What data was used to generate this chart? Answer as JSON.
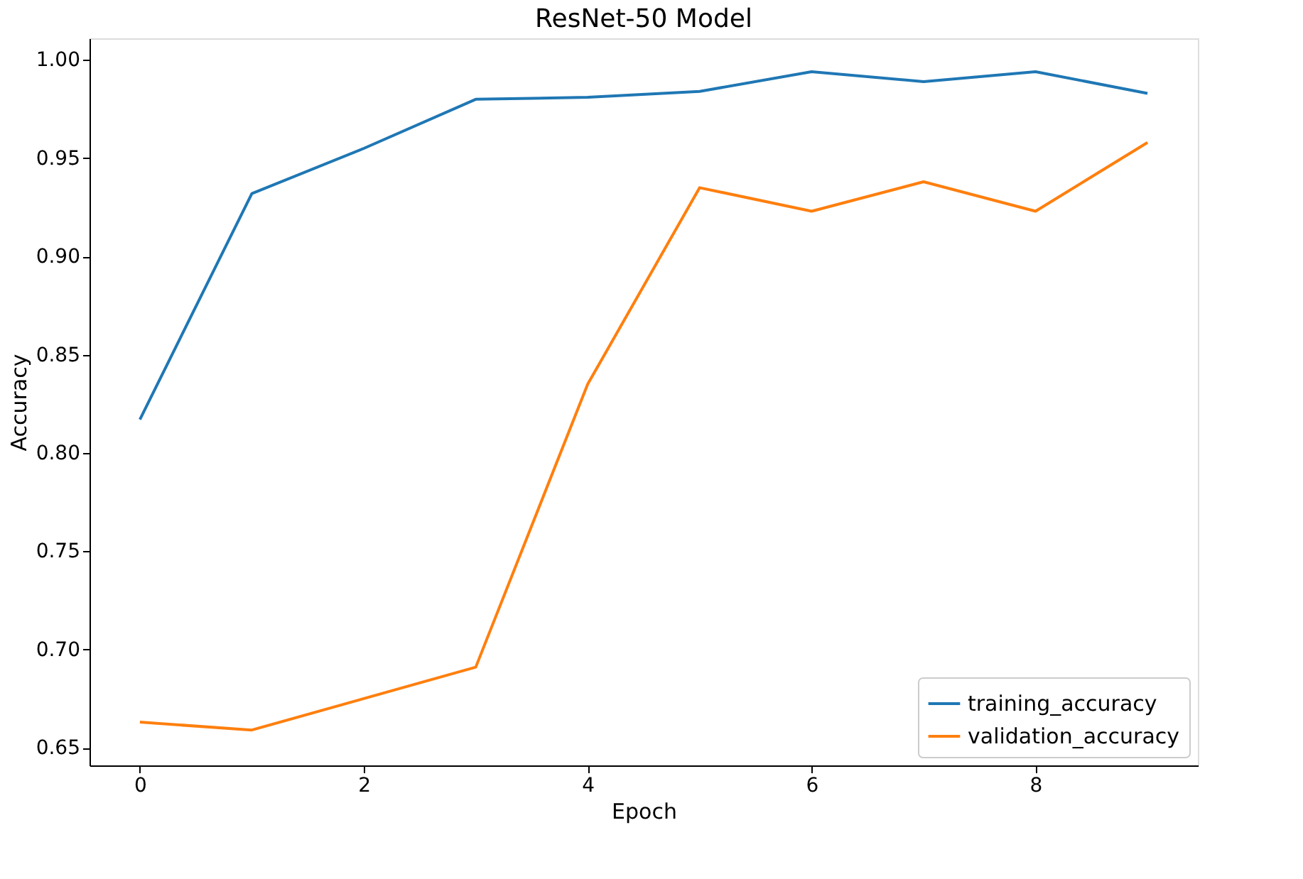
{
  "chart_data": {
    "type": "line",
    "title": "ResNet-50 Model",
    "xlabel": "Epoch",
    "ylabel": "Accuracy",
    "x": [
      0,
      1,
      2,
      3,
      4,
      5,
      6,
      7,
      8,
      9
    ],
    "series": [
      {
        "name": "training_accuracy",
        "color": "#1f77b4",
        "values": [
          0.817,
          0.932,
          0.955,
          0.98,
          0.981,
          0.984,
          0.994,
          0.989,
          0.994,
          0.983
        ]
      },
      {
        "name": "validation_accuracy",
        "color": "#ff7f0e",
        "values": [
          0.663,
          0.659,
          0.675,
          0.691,
          0.835,
          0.935,
          0.923,
          0.938,
          0.923,
          0.958
        ]
      }
    ],
    "xlim": [
      -0.45,
      9.45
    ],
    "xticks": [
      0,
      2,
      4,
      6,
      8
    ],
    "ylim": [
      0.641,
      1.011
    ],
    "yticks": [
      0.65,
      {
        "value": 0.7,
        "label": "0.70"
      },
      0.75,
      {
        "value": 0.8,
        "label": "0.80"
      },
      0.85,
      {
        "value": 0.9,
        "label": "0.90"
      },
      0.95,
      {
        "value": 1.0,
        "label": "1.00"
      }
    ],
    "grid": false,
    "legend": "bottom right",
    "marker": "none",
    "line_style": "solid"
  }
}
